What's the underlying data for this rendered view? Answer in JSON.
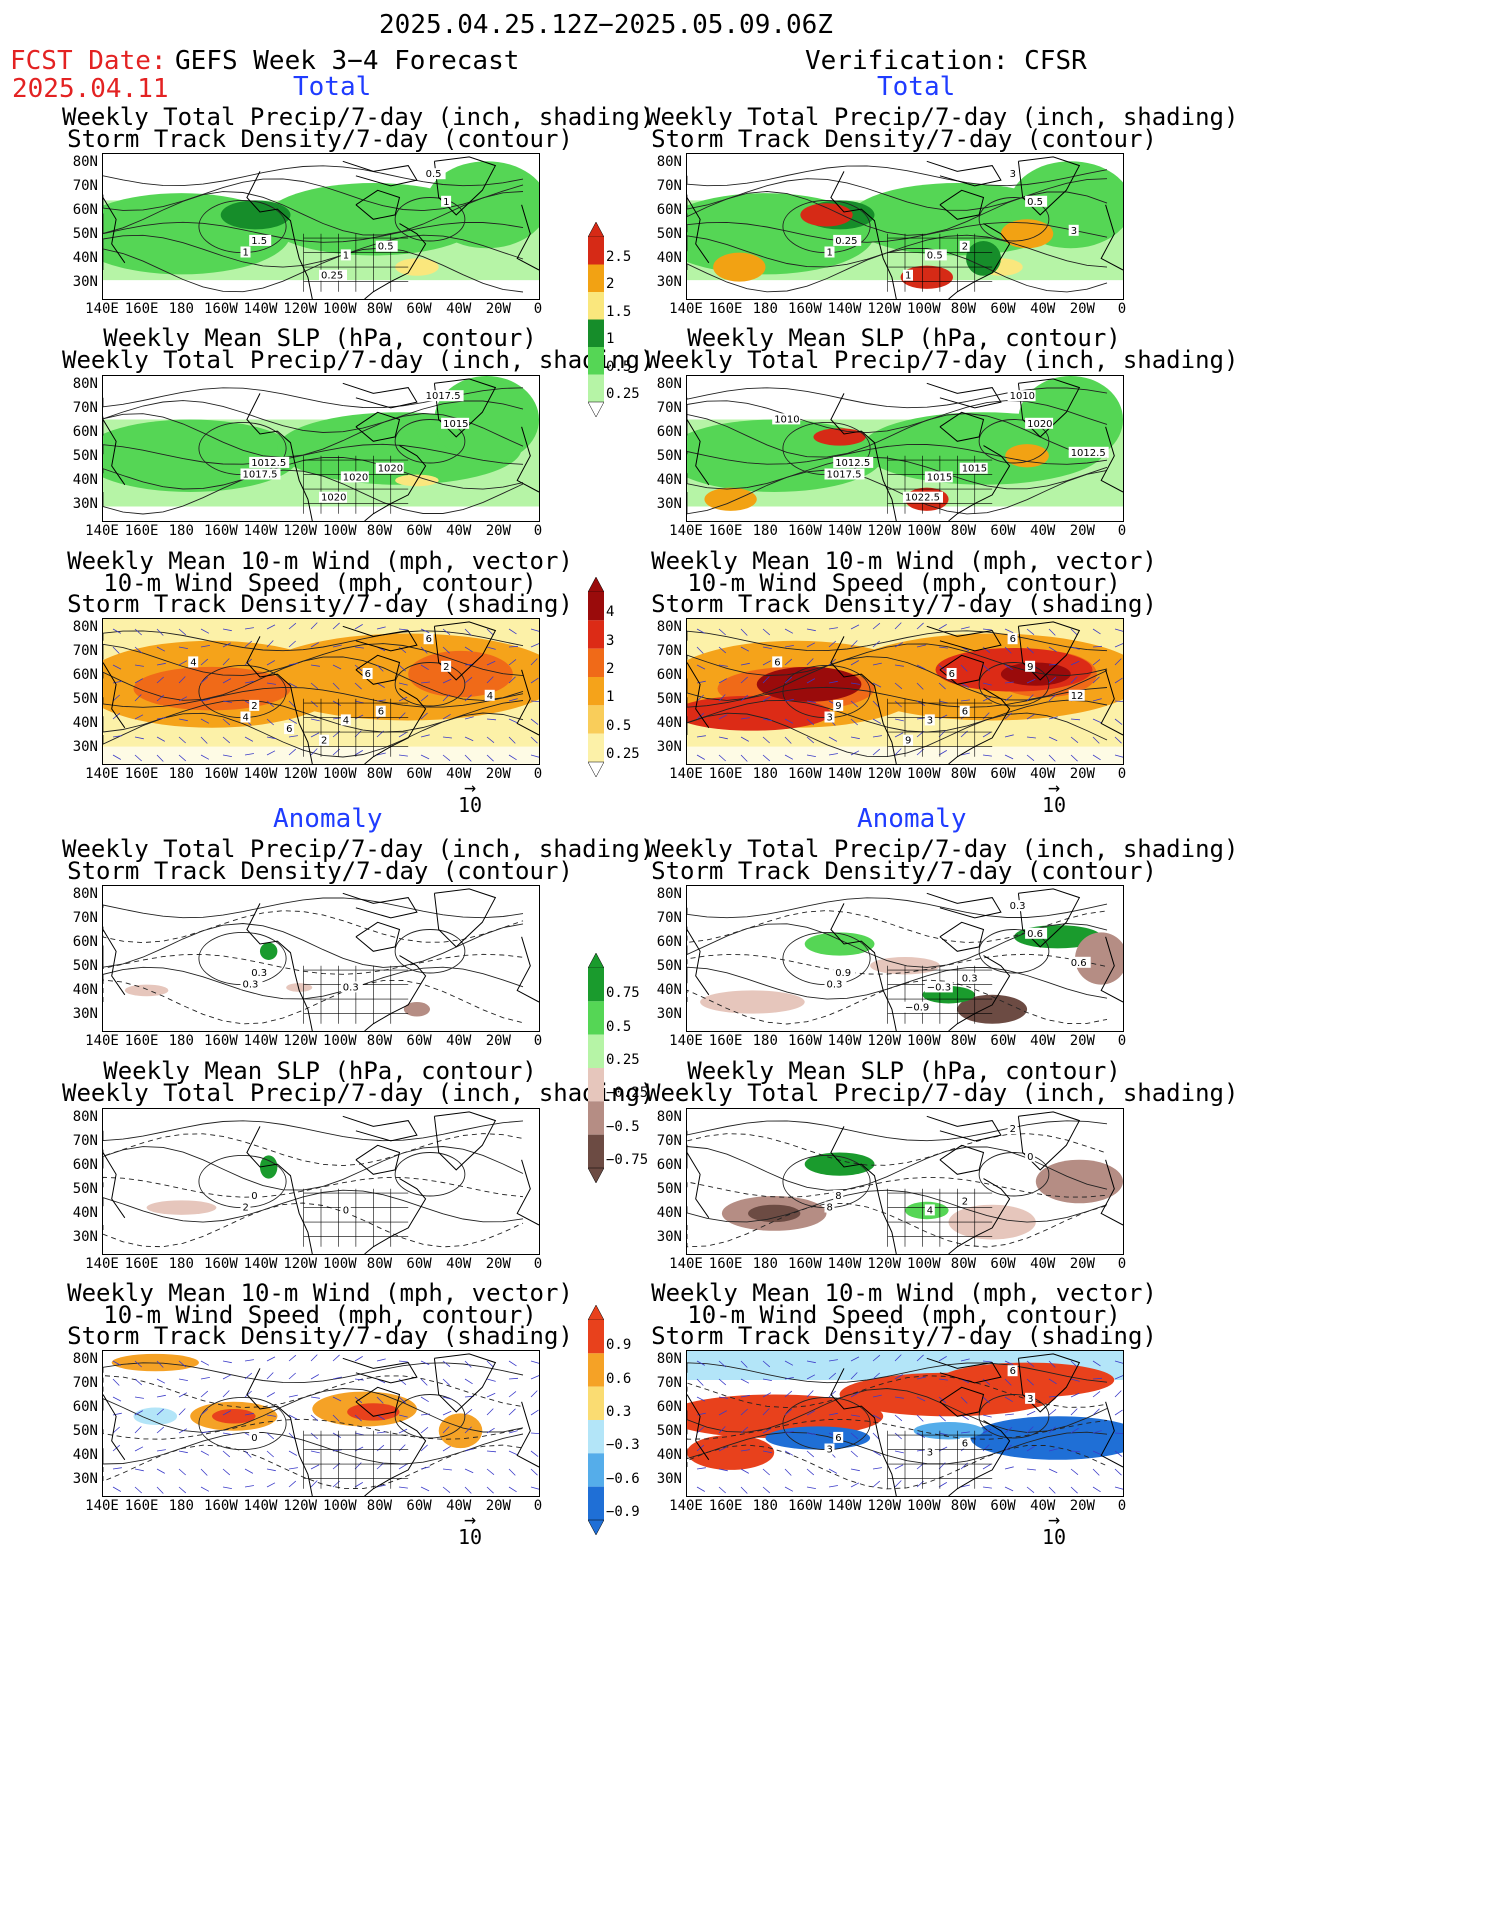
{
  "header": {
    "date_range": "2025.04.25.12Z−2025.05.09.06Z",
    "fcst_label": "FCST Date:",
    "fcst_date": "2025.04.11",
    "left_title": "GEFS Week 3−4 Forecast",
    "right_title": "Verification: CFSR"
  },
  "sections": {
    "total": "Total",
    "anomaly": "Anomaly"
  },
  "titles": {
    "precip_storm": [
      "Weekly Total Precip/7-day (inch, shading)",
      "Storm Track Density/7-day (contour)"
    ],
    "slp_precip": [
      "Weekly Mean SLP (hPa, contour)",
      "Weekly Total Precip/7-day (inch, shading)"
    ],
    "wind_storm": [
      "Weekly Mean 10-m Wind (mph, vector)",
      "10-m Wind Speed (mph, contour)",
      "Storm Track Density/7-day (shading)"
    ]
  },
  "axes": {
    "lat_labels": [
      "80N",
      "70N",
      "60N",
      "50N",
      "40N",
      "30N"
    ],
    "lon_labels": [
      "140E",
      "160E",
      "180",
      "160W",
      "140W",
      "120W",
      "100W",
      "80W",
      "60W",
      "40W",
      "20W",
      "0"
    ]
  },
  "vector_ref": "10",
  "colorbars": {
    "precip_total": {
      "labels": [
        "2.5",
        "2",
        "1.5",
        "1",
        "0.5",
        "0.25"
      ],
      "colors": [
        "#d62a16",
        "#f2a213",
        "#fae77d",
        "#168d2a",
        "#55d655",
        "#b6f4a6"
      ]
    },
    "storm_total": {
      "labels": [
        "4",
        "3",
        "2",
        "1",
        "0.5",
        "0.25"
      ],
      "colors": [
        "#9a0b0b",
        "#dc2b16",
        "#f06a18",
        "#f5a31a",
        "#f9cd5a",
        "#fcf1a8"
      ]
    },
    "precip_anom": {
      "labels": [
        "0.75",
        "0.5",
        "0.25",
        "−0.25",
        "−0.5",
        "−0.75"
      ],
      "colors": [
        "#1a9b2d",
        "#55d655",
        "#b6f4a6",
        "#e6c6bc",
        "#b58d84",
        "#6c4b43"
      ]
    },
    "storm_anom": {
      "labels": [
        "0.9",
        "0.6",
        "0.3",
        "−0.3",
        "−0.6",
        "−0.9"
      ],
      "colors": [
        "#e8411c",
        "#f5a226",
        "#fadc72",
        "#b3e5f8",
        "#55adea",
        "#1f6fd6"
      ]
    }
  },
  "panel_labels": {
    "L1": [
      "1.5",
      "1",
      "1",
      "0.5",
      "0.5",
      "1",
      "0.25"
    ],
    "R1": [
      "0.25",
      "1",
      "0.5",
      "2",
      "3",
      "0.5",
      "1",
      "3"
    ],
    "L2": [
      "1012.5",
      "1017.5",
      "1020",
      "1020",
      "1017.5",
      "1015",
      "1020"
    ],
    "R2": [
      "1012.5",
      "1017.5",
      "1015",
      "1015",
      "1010",
      "1020",
      "1022.5",
      "1012.5",
      "1010"
    ],
    "L3": [
      "2",
      "4",
      "4",
      "6",
      "6",
      "2",
      "2",
      "4",
      "4",
      "6",
      "6"
    ],
    "R3": [
      "9",
      "3",
      "3",
      "6",
      "6",
      "9",
      "9",
      "12",
      "6",
      "6"
    ],
    "L4": [
      "0.3",
      "0.3",
      "0.3"
    ],
    "R4": [
      "0.9",
      "0.3",
      "−0.3",
      "0.3",
      "0.3",
      "0.6",
      "−0.9",
      "0.6"
    ],
    "L5": [
      "0",
      "2",
      "0"
    ],
    "R5": [
      "8",
      "8",
      "4",
      "2",
      "2",
      "0"
    ],
    "L6": [
      "0"
    ],
    "R6": [
      "6",
      "3",
      "3",
      "6",
      "6",
      "3"
    ]
  }
}
